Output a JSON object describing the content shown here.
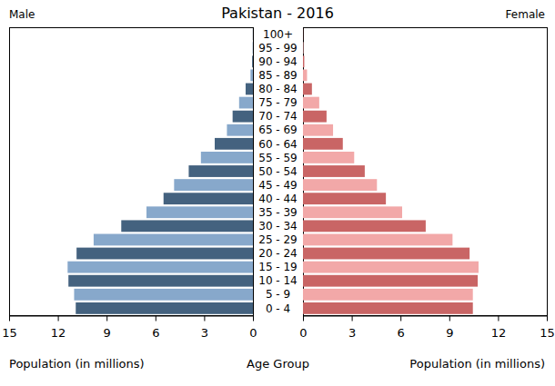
{
  "chart_data": {
    "type": "pyramid",
    "title": "Pakistan - 2016",
    "orientation": "horizontal",
    "xlabel": "Population (in millions)",
    "ylabel": "Age Group",
    "categories": [
      "0 - 4",
      "5 - 9",
      "10 - 14",
      "15 - 19",
      "20 - 24",
      "25 - 29",
      "30 - 34",
      "35 - 39",
      "40 - 44",
      "45 - 49",
      "50 - 54",
      "55 - 59",
      "60 - 64",
      "65 - 69",
      "70 - 74",
      "75 - 79",
      "80 - 84",
      "85 - 89",
      "90 - 94",
      "95 - 99",
      "100+"
    ],
    "series": [
      {
        "name": "Male",
        "colors": [
          "#44627f",
          "#87a8cb",
          "#44627f",
          "#87a8cb",
          "#44627f",
          "#87a8cb",
          "#44627f",
          "#87a8cb",
          "#44627f",
          "#87a8cb",
          "#44627f",
          "#87a8cb",
          "#44627f",
          "#87a8cb",
          "#44627f",
          "#87a8cb",
          "#44627f",
          "#87a8cb",
          "#44627f",
          "#87a8cb",
          "#44627f"
        ],
        "values": [
          10.9,
          11.0,
          11.35,
          11.4,
          10.85,
          9.8,
          8.1,
          6.55,
          5.5,
          4.85,
          3.95,
          3.2,
          2.35,
          1.6,
          1.25,
          0.85,
          0.45,
          0.15,
          0.05,
          0.02,
          0.01
        ]
      },
      {
        "name": "Female",
        "colors": [
          "#c96565",
          "#f2a8a8",
          "#c96565",
          "#f2a8a8",
          "#c96565",
          "#f2a8a8",
          "#c96565",
          "#f2a8a8",
          "#c96565",
          "#f2a8a8",
          "#c96565",
          "#f2a8a8",
          "#c96565",
          "#f2a8a8",
          "#c96565",
          "#f2a8a8",
          "#c96565",
          "#f2a8a8",
          "#c96565",
          "#f2a8a8",
          "#c96565"
        ],
        "values": [
          10.45,
          10.45,
          10.75,
          10.8,
          10.25,
          9.2,
          7.55,
          6.1,
          5.1,
          4.55,
          3.8,
          3.15,
          2.45,
          1.85,
          1.45,
          1.0,
          0.55,
          0.25,
          0.08,
          0.03,
          0.01
        ]
      }
    ],
    "xlim": [
      0,
      15
    ],
    "xticks": [
      0,
      3,
      6,
      9,
      12,
      15
    ]
  }
}
